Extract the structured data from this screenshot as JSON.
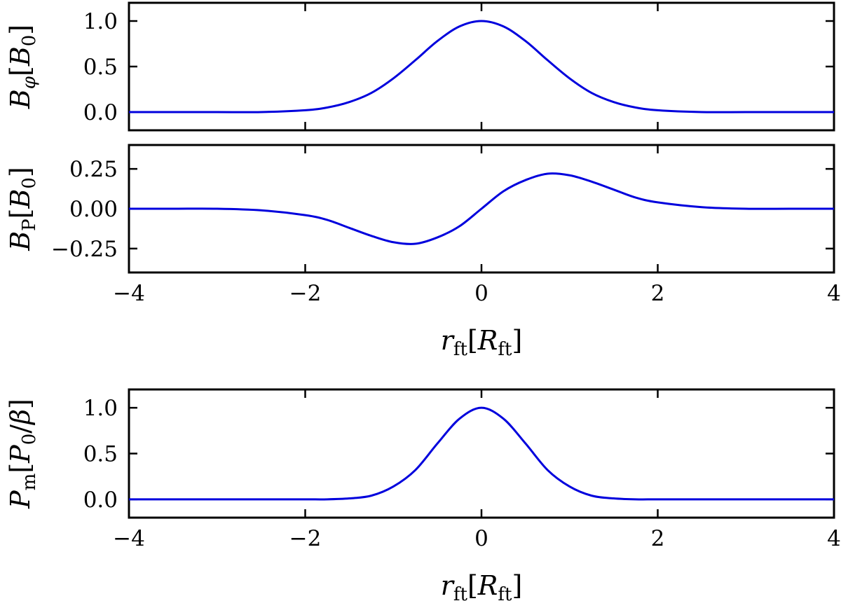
{
  "chart_data": [
    {
      "type": "line",
      "ylabel": "Bφ[B0]",
      "ylim": [
        -0.2,
        1.2
      ],
      "xlim": [
        -4,
        4
      ],
      "x_ticks": [
        "−4",
        "−2",
        "0",
        "2",
        "4"
      ],
      "x_ticks_labeled": false,
      "y_ticks": [
        "0.0",
        "0.5",
        "1.0"
      ],
      "series": [
        {
          "color": "#0000dd",
          "x": [
            -4,
            -3.5,
            -3,
            -2.5,
            -2,
            -1.75,
            -1.5,
            -1.25,
            -1,
            -0.75,
            -0.5,
            -0.25,
            0,
            0.25,
            0.5,
            0.75,
            1,
            1.25,
            1.5,
            1.75,
            2,
            2.5,
            3,
            3.5,
            4
          ],
          "y": [
            0.0,
            0.0,
            0.0,
            0.0,
            0.02,
            0.05,
            0.11,
            0.21,
            0.37,
            0.57,
            0.78,
            0.94,
            1.0,
            0.94,
            0.78,
            0.57,
            0.37,
            0.21,
            0.11,
            0.05,
            0.02,
            0.0,
            0.0,
            0.0,
            0.0
          ]
        }
      ]
    },
    {
      "type": "line",
      "ylabel": "BP[B0]",
      "xlabel": "rft[Rft]",
      "ylim": [
        -0.4,
        0.4
      ],
      "xlim": [
        -4,
        4
      ],
      "x_ticks": [
        "−4",
        "−2",
        "0",
        "2",
        "4"
      ],
      "x_ticks_labeled": true,
      "y_ticks": [
        "−0.25",
        "0.00",
        "0.25"
      ],
      "series": [
        {
          "color": "#0000dd",
          "x": [
            -4,
            -3.5,
            -3,
            -2.5,
            -2,
            -1.75,
            -1.5,
            -1.25,
            -1,
            -0.75,
            -0.5,
            -0.25,
            0,
            0.25,
            0.5,
            0.75,
            1,
            1.25,
            1.5,
            1.75,
            2,
            2.5,
            3,
            3.5,
            4
          ],
          "y": [
            0.0,
            0.0,
            0.0,
            -0.01,
            -0.04,
            -0.07,
            -0.12,
            -0.17,
            -0.21,
            -0.22,
            -0.18,
            -0.11,
            0.0,
            0.11,
            0.18,
            0.22,
            0.21,
            0.17,
            0.12,
            0.07,
            0.04,
            0.01,
            0.0,
            0.0,
            0.0
          ]
        }
      ]
    },
    {
      "type": "line",
      "ylabel": "Pm[P0/β]",
      "xlabel": "rft[Rft]",
      "ylim": [
        -0.2,
        1.2
      ],
      "xlim": [
        -4,
        4
      ],
      "x_ticks": [
        "−4",
        "−2",
        "0",
        "2",
        "4"
      ],
      "x_ticks_labeled": true,
      "y_ticks": [
        "0.0",
        "0.5",
        "1.0"
      ],
      "series": [
        {
          "color": "#0000dd",
          "x": [
            -4,
            -3.5,
            -3,
            -2.5,
            -2,
            -1.75,
            -1.5,
            -1.25,
            -1,
            -0.75,
            -0.5,
            -0.25,
            0,
            0.25,
            0.5,
            0.75,
            1,
            1.25,
            1.5,
            1.75,
            2,
            2.5,
            3,
            3.5,
            4
          ],
          "y": [
            0.0,
            0.0,
            0.0,
            0.0,
            0.0,
            0.0,
            0.01,
            0.04,
            0.14,
            0.32,
            0.61,
            0.88,
            1.0,
            0.88,
            0.61,
            0.32,
            0.14,
            0.04,
            0.01,
            0.0,
            0.0,
            0.0,
            0.0,
            0.0,
            0.0
          ]
        }
      ]
    }
  ]
}
